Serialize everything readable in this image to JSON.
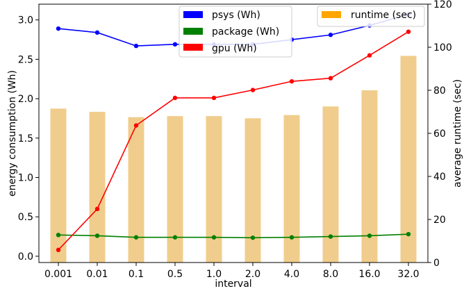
{
  "chart_data": {
    "type": "bar+line",
    "xlabel": "interval",
    "ylabel_left": "energy consumption (Wh)",
    "ylabel_right": "average runtime (sec)",
    "categories": [
      "0.001",
      "0.01",
      "0.1",
      "0.5",
      "1.0",
      "2.0",
      "4.0",
      "8.0",
      "16.0",
      "32.0"
    ],
    "ylim_left": [
      -0.08,
      3.2
    ],
    "ylim_right": [
      0,
      120
    ],
    "yticks_left": [
      "0.0",
      "0.5",
      "1.0",
      "1.5",
      "2.0",
      "2.5",
      "3.0"
    ],
    "yticks_right": [
      "0",
      "20",
      "40",
      "60",
      "80",
      "100",
      "120"
    ],
    "grid": false,
    "bar_series": {
      "name": "runtime (sec)",
      "color": "#f0cd8c",
      "legend_color": "#ffa500",
      "axis": "right",
      "values": [
        71.5,
        70,
        67.5,
        68,
        68,
        67,
        68.5,
        72.5,
        80,
        96
      ]
    },
    "series": [
      {
        "name": "psys (Wh)",
        "color": "#0000ff",
        "axis": "left",
        "values": [
          2.89,
          2.84,
          2.67,
          2.69,
          2.69,
          2.69,
          2.75,
          2.81,
          2.93,
          3.07
        ]
      },
      {
        "name": "package (Wh)",
        "color": "#008000",
        "axis": "left",
        "values": [
          0.27,
          0.26,
          0.24,
          0.24,
          0.24,
          0.235,
          0.24,
          0.25,
          0.26,
          0.28
        ]
      },
      {
        "name": "gpu (Wh)",
        "color": "#ff0000",
        "axis": "left",
        "values": [
          0.08,
          0.6,
          1.66,
          2.01,
          2.01,
          2.11,
          2.22,
          2.26,
          2.55,
          2.85
        ]
      }
    ],
    "legend_left_position": "top-center",
    "legend_right_position": "top-right"
  }
}
